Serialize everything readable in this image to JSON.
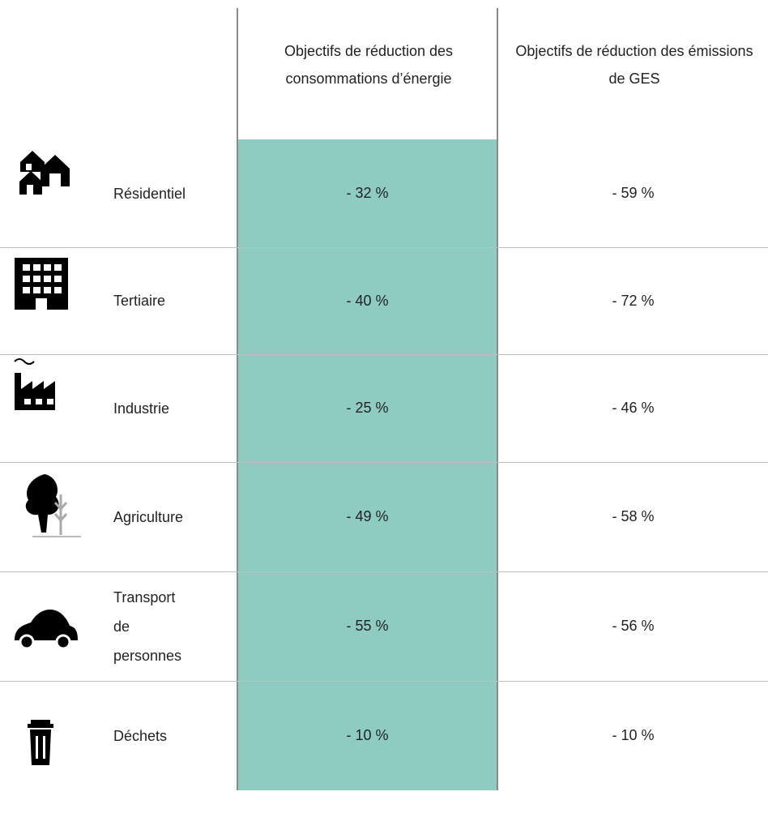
{
  "table": {
    "header": [
      "Objectifs de réduction des consommations d’énergie",
      "Objectifs de réduction des émissions de GES"
    ],
    "rows": [
      {
        "label": "Résidentiel",
        "energy": "- 32 %",
        "ges": "- 59 %"
      },
      {
        "label": "Tertiaire",
        "energy": "- 40 %",
        "ges": "- 72 %"
      },
      {
        "label": "Industrie",
        "energy": "- 25 %",
        "ges": "- 46 %"
      },
      {
        "label": "Agriculture",
        "energy": "- 49 %",
        "ges": "- 58 %"
      },
      {
        "label": "Transport de personnes",
        "energy": "- 55 %",
        "ges": "- 56 %"
      },
      {
        "label": "Déchets",
        "energy": "- 10 %",
        "ges": "- 10 %"
      }
    ]
  }
}
